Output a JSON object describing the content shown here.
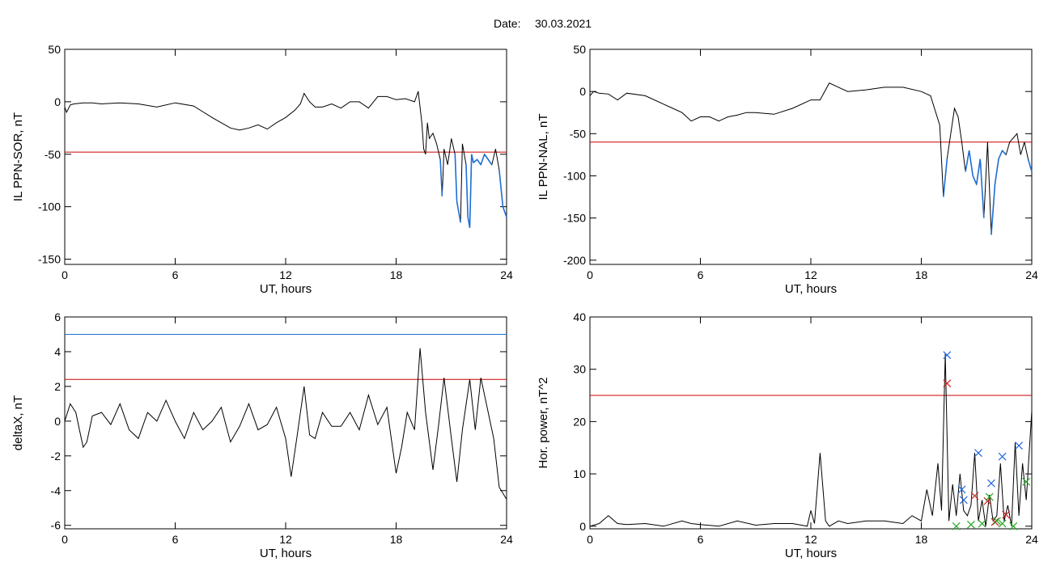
{
  "header": {
    "date_label": "Date:",
    "date_value": "30.03.2021"
  },
  "colors": {
    "trace": "#000000",
    "threshold_red": "#cc0000",
    "threshold_blue": "#1f6fd6",
    "highlight": "#1f6fd6",
    "marker_red": "#cc2222",
    "marker_blue": "#2266dd",
    "marker_green": "#22aa22"
  },
  "chart_data": [
    {
      "id": "ppn-sor",
      "type": "line",
      "xlabel": "UT, hours",
      "ylabel": "IL PPN-SOR, nT",
      "xlim": [
        0,
        24
      ],
      "ylim": [
        -155,
        50
      ],
      "xticks": [
        0,
        6,
        12,
        18,
        24
      ],
      "yticks": [
        50,
        0,
        -50,
        -100,
        -150
      ],
      "grid": false,
      "threshold_lines": [
        {
          "y": -48,
          "color": "red"
        }
      ],
      "highlight_threshold": -48,
      "series": [
        {
          "x": [
            0,
            0.1,
            0.3,
            0.5,
            1,
            1.5,
            2,
            3,
            4,
            5,
            6,
            7,
            8,
            8.5,
            9,
            9.5,
            10,
            10.5,
            11,
            11.5,
            12,
            12.5,
            12.8,
            13,
            13.3,
            13.6,
            14,
            14.5,
            15,
            15.5,
            16,
            16.5,
            17,
            17.5,
            18,
            18.5,
            19,
            19.2,
            19.4,
            19.5,
            19.6,
            19.7,
            19.8,
            20,
            20.2,
            20.4,
            20.5,
            20.6,
            20.8,
            21,
            21.2,
            21.3,
            21.4,
            21.5,
            21.6,
            21.8,
            21.9,
            22,
            22.1,
            22.2,
            22.4,
            22.6,
            22.8,
            23,
            23.2,
            23.4,
            23.6,
            23.8,
            24
          ],
          "y": [
            -5,
            -10,
            -3,
            -2,
            -1,
            -1,
            -2,
            -1,
            -2,
            -5,
            -1,
            -4,
            -15,
            -20,
            -25,
            -27,
            -25,
            -22,
            -26,
            -20,
            -15,
            -8,
            -2,
            8,
            0,
            -5,
            -5,
            -2,
            -6,
            0,
            0,
            -6,
            5,
            5,
            2,
            3,
            0,
            10,
            -20,
            -45,
            -50,
            -20,
            -35,
            -30,
            -40,
            -55,
            -90,
            -45,
            -60,
            -35,
            -50,
            -95,
            -105,
            -115,
            -40,
            -60,
            -110,
            -120,
            -50,
            -58,
            -55,
            -60,
            -50,
            -55,
            -60,
            -45,
            -65,
            -100,
            -110
          ]
        }
      ]
    },
    {
      "id": "ppn-nal",
      "type": "line",
      "xlabel": "UT, hours",
      "ylabel": "IL PPN-NAL, nT",
      "xlim": [
        0,
        24
      ],
      "ylim": [
        -205,
        50
      ],
      "xticks": [
        0,
        6,
        12,
        18,
        24
      ],
      "yticks": [
        50,
        0,
        -50,
        -100,
        -150,
        -200
      ],
      "grid": false,
      "threshold_lines": [
        {
          "y": -60,
          "color": "red"
        }
      ],
      "highlight_threshold": -60,
      "series": [
        {
          "x": [
            0,
            0.2,
            0.5,
            1,
            1.5,
            2,
            3,
            4,
            4.5,
            5,
            5.5,
            6,
            6.5,
            7,
            7.5,
            8,
            8.5,
            9,
            10,
            11,
            12,
            12.5,
            13,
            13.5,
            14,
            15,
            16,
            17,
            18,
            18.5,
            19,
            19.2,
            19.4,
            19.6,
            19.8,
            20,
            20.2,
            20.4,
            20.6,
            20.8,
            21,
            21.2,
            21.4,
            21.6,
            21.8,
            22,
            22.2,
            22.4,
            22.6,
            22.8,
            23,
            23.2,
            23.4,
            23.6,
            23.8,
            24
          ],
          "y": [
            -5,
            0,
            -2,
            -3,
            -10,
            -2,
            -5,
            -15,
            -20,
            -25,
            -35,
            -30,
            -30,
            -35,
            -30,
            -28,
            -25,
            -25,
            -27,
            -20,
            -10,
            -10,
            10,
            5,
            0,
            2,
            5,
            5,
            0,
            -5,
            -40,
            -125,
            -80,
            -50,
            -20,
            -30,
            -60,
            -95,
            -70,
            -100,
            -110,
            -80,
            -150,
            -60,
            -170,
            -110,
            -80,
            -70,
            -75,
            -60,
            -55,
            -50,
            -75,
            -60,
            -80,
            -95
          ]
        }
      ]
    },
    {
      "id": "deltax",
      "type": "line",
      "xlabel": "UT, hours",
      "ylabel": "deltaX, nT",
      "xlim": [
        0,
        24
      ],
      "ylim": [
        -6.2,
        6
      ],
      "xticks": [
        0,
        6,
        12,
        18,
        24
      ],
      "yticks": [
        6,
        4,
        2,
        0,
        -2,
        -4,
        -6
      ],
      "grid": false,
      "threshold_lines": [
        {
          "y": 5.0,
          "color": "blue"
        },
        {
          "y": 2.4,
          "color": "red"
        }
      ],
      "series": [
        {
          "x": [
            0,
            0.3,
            0.6,
            0.8,
            1,
            1.2,
            1.5,
            2,
            2.5,
            3,
            3.5,
            4,
            4.5,
            5,
            5.5,
            6,
            6.5,
            7,
            7.5,
            8,
            8.5,
            9,
            9.5,
            10,
            10.5,
            11,
            11.5,
            12,
            12.3,
            12.6,
            13,
            13.3,
            13.6,
            14,
            14.5,
            15,
            15.5,
            16,
            16.5,
            17,
            17.5,
            18,
            18.3,
            18.6,
            19,
            19.3,
            19.6,
            20,
            20.3,
            20.6,
            21,
            21.3,
            21.6,
            22,
            22.3,
            22.6,
            23,
            23.3,
            23.6,
            24
          ],
          "y": [
            0,
            1.0,
            0.5,
            -0.5,
            -1.5,
            -1.2,
            0.3,
            0.5,
            -0.2,
            1.0,
            -0.5,
            -1,
            0.5,
            0,
            1.2,
            0,
            -1,
            0.5,
            -0.5,
            0,
            0.8,
            -1.2,
            -0.3,
            1.0,
            -0.5,
            -0.2,
            0.8,
            -1.0,
            -3.2,
            -1.0,
            2.0,
            -0.8,
            -1.0,
            0.5,
            -0.3,
            -0.3,
            0.5,
            -0.5,
            1.5,
            -0.2,
            0.8,
            -3,
            -1.5,
            0.5,
            -0.5,
            4.2,
            0.5,
            -2.8,
            -0.3,
            2.5,
            -1,
            -3.5,
            -0.5,
            2.4,
            -0.5,
            2.5,
            0.5,
            -1,
            -3.8,
            -4.5
          ]
        }
      ]
    },
    {
      "id": "hor-power",
      "type": "line",
      "xlabel": "UT, hours",
      "ylabel": "Hor. power, nT^2",
      "xlim": [
        0,
        24
      ],
      "ylim": [
        -0.5,
        40
      ],
      "xticks": [
        0,
        6,
        12,
        18,
        24
      ],
      "yticks": [
        40,
        30,
        20,
        10,
        0
      ],
      "grid": false,
      "threshold_lines": [
        {
          "y": 25,
          "color": "red"
        }
      ],
      "series": [
        {
          "x": [
            0,
            0.5,
            1,
            1.5,
            2,
            3,
            4,
            5,
            5.5,
            6,
            7,
            8,
            9,
            10,
            11,
            11.8,
            12,
            12.2,
            12.5,
            12.8,
            13,
            13.5,
            14,
            15,
            16,
            17,
            17.5,
            18,
            18.3,
            18.6,
            18.9,
            19.1,
            19.3,
            19.5,
            19.7,
            19.9,
            20.1,
            20.3,
            20.5,
            20.7,
            20.9,
            21.1,
            21.3,
            21.5,
            21.7,
            21.9,
            22.1,
            22.3,
            22.5,
            22.7,
            22.9,
            23.1,
            23.3,
            23.5,
            23.7,
            24
          ],
          "y": [
            0,
            0.5,
            2,
            0.5,
            0.3,
            0.5,
            0,
            1,
            0.5,
            0.3,
            0,
            1,
            0.2,
            0.5,
            0.5,
            0,
            3,
            0.5,
            14,
            1,
            0,
            1,
            0.5,
            1,
            1,
            0.5,
            2,
            1,
            7,
            2,
            12,
            3,
            33,
            1,
            8,
            2,
            10,
            3,
            2,
            4,
            14,
            1,
            5,
            0,
            6,
            1,
            2,
            12,
            1,
            4,
            0,
            16,
            2,
            12,
            5,
            22
          ]
        }
      ],
      "markers": {
        "blue": [
          {
            "x": 19.4,
            "y": 32.7
          },
          {
            "x": 20.3,
            "y": 5
          },
          {
            "x": 21.1,
            "y": 14
          },
          {
            "x": 21.8,
            "y": 8.2
          },
          {
            "x": 22.4,
            "y": 13.3
          },
          {
            "x": 23.3,
            "y": 15.4
          },
          {
            "x": 20.2,
            "y": 7
          }
        ],
        "red": [
          {
            "x": 19.4,
            "y": 27.3
          },
          {
            "x": 20.9,
            "y": 5.8
          },
          {
            "x": 21.6,
            "y": 4.8
          },
          {
            "x": 22.0,
            "y": 0.8
          },
          {
            "x": 22.6,
            "y": 2.2
          }
        ],
        "green": [
          {
            "x": 19.9,
            "y": 0
          },
          {
            "x": 20.7,
            "y": 0.3
          },
          {
            "x": 21.3,
            "y": 0.5
          },
          {
            "x": 21.7,
            "y": 5.6
          },
          {
            "x": 22.1,
            "y": 1
          },
          {
            "x": 22.4,
            "y": 0.5
          },
          {
            "x": 23.0,
            "y": 0
          },
          {
            "x": 23.7,
            "y": 8.5
          }
        ]
      }
    }
  ]
}
